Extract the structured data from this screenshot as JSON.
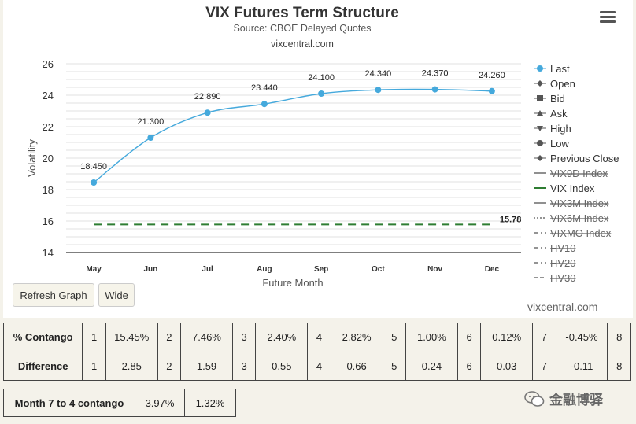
{
  "header": {
    "title": "VIX Futures Term Structure",
    "subtitle": "Source: CBOE Delayed Quotes",
    "site": "vixcentral.com",
    "menu_icon": "hamburger-menu-icon"
  },
  "chart_data": {
    "type": "line",
    "categories": [
      "May",
      "Jun",
      "Jul",
      "Aug",
      "Sep",
      "Oct",
      "Nov",
      "Dec"
    ],
    "series": [
      {
        "name": "Last",
        "values": [
          18.45,
          21.3,
          22.89,
          23.44,
          24.1,
          24.34,
          24.37,
          24.26
        ],
        "labels": [
          "18.450",
          "21.300",
          "22.890",
          "23.440",
          "24.100",
          "24.340",
          "24.370",
          "24.260"
        ],
        "color": "#45a9dc"
      },
      {
        "name": "VIX Index",
        "values": [
          15.78,
          15.78,
          15.78,
          15.78,
          15.78,
          15.78,
          15.78,
          15.78
        ],
        "end_label": "15.78",
        "color": "#2e7d32",
        "dash": true
      }
    ],
    "xlabel": "Future Month",
    "ylabel": "Volatility",
    "ylim": [
      14,
      26
    ],
    "yticks": [
      14,
      16,
      18,
      20,
      22,
      24,
      26
    ],
    "grid": true,
    "legend_position": "right"
  },
  "legend": [
    {
      "label": "Last",
      "marker": "circle",
      "color": "#45a9dc",
      "state": "active"
    },
    {
      "label": "Open",
      "marker": "diamond",
      "color": "#555",
      "state": "active"
    },
    {
      "label": "Bid",
      "marker": "square",
      "color": "#555",
      "state": "active"
    },
    {
      "label": "Ask",
      "marker": "triangle",
      "color": "#555",
      "state": "active"
    },
    {
      "label": "High",
      "marker": "triangle-down",
      "color": "#555",
      "state": "active"
    },
    {
      "label": "Low",
      "marker": "circle",
      "color": "#555",
      "state": "active"
    },
    {
      "label": "Previous Close",
      "marker": "diamond",
      "color": "#555",
      "state": "active"
    },
    {
      "label": "VIX9D Index",
      "marker": "line",
      "color": "#555",
      "state": "hidden"
    },
    {
      "label": "VIX Index",
      "marker": "line",
      "color": "#2e7d32",
      "state": "active"
    },
    {
      "label": "VIX3M Index",
      "marker": "line",
      "color": "#555",
      "state": "hidden"
    },
    {
      "label": "VIX6M Index",
      "marker": "dotted",
      "color": "#555",
      "state": "hidden"
    },
    {
      "label": "VIXMO Index",
      "marker": "dashdot",
      "color": "#555",
      "state": "hidden"
    },
    {
      "label": "HV10",
      "marker": "dashdot",
      "color": "#555",
      "state": "hidden"
    },
    {
      "label": "HV20",
      "marker": "dashdot",
      "color": "#555",
      "state": "hidden"
    },
    {
      "label": "HV30",
      "marker": "dashed",
      "color": "#555",
      "state": "hidden"
    }
  ],
  "buttons": {
    "refresh": "Refresh Graph",
    "wide": "Wide"
  },
  "credit": "vixcentral.com",
  "contango_table": {
    "row1_label": "% Contango",
    "row1": [
      [
        "1",
        "15.45%"
      ],
      [
        "2",
        "7.46%"
      ],
      [
        "3",
        "2.40%"
      ],
      [
        "4",
        "2.82%"
      ],
      [
        "5",
        "1.00%"
      ],
      [
        "6",
        "0.12%"
      ],
      [
        "7",
        "-0.45%"
      ],
      [
        "8",
        ""
      ]
    ],
    "row2_label": "Difference",
    "row2": [
      [
        "1",
        "2.85"
      ],
      [
        "2",
        "1.59"
      ],
      [
        "3",
        "0.55"
      ],
      [
        "4",
        "0.66"
      ],
      [
        "5",
        "0.24"
      ],
      [
        "6",
        "0.03"
      ],
      [
        "7",
        "-0.11"
      ],
      [
        "8",
        ""
      ]
    ]
  },
  "month_table": {
    "label": "Month 7 to 4 contango",
    "v1": "3.97%",
    "v2": "1.32%"
  },
  "watermark": {
    "text": "金融博驿",
    "icon": "wechat-icon"
  }
}
